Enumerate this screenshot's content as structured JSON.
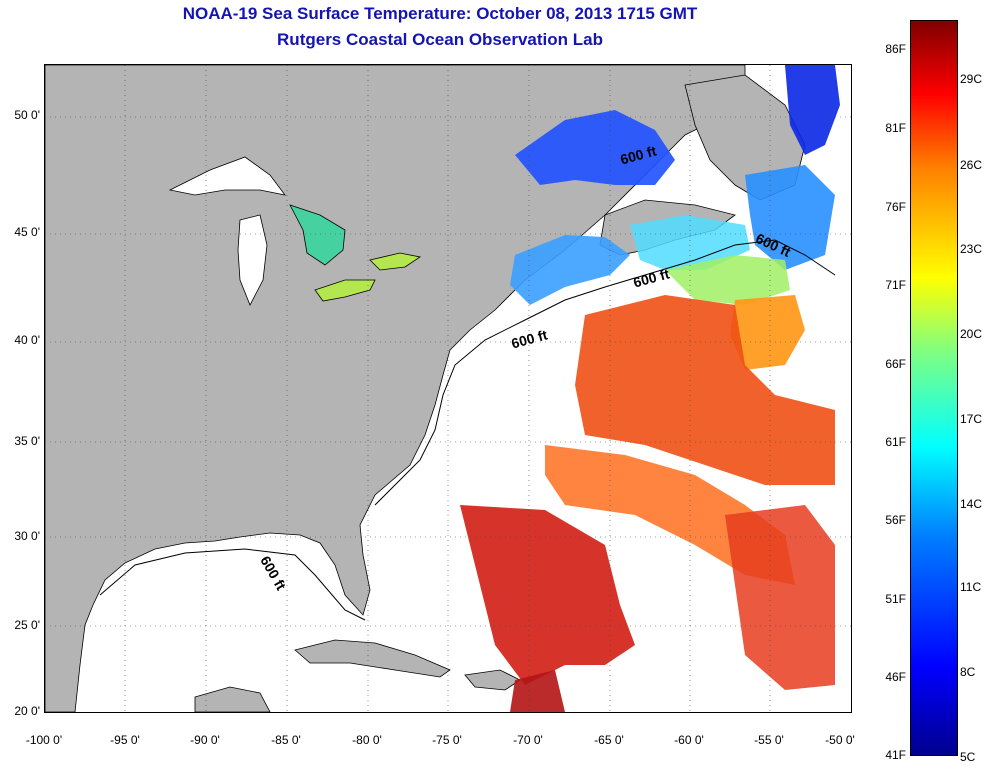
{
  "title": "NOAA-19 Sea Surface Temperature:  October 08, 2013 1715 GMT",
  "subtitle": "Rutgers Coastal Ocean Observation Lab",
  "lat_labels": [
    "50 0'",
    "45 0'",
    "40 0'",
    "35 0'",
    "30 0'",
    "25 0'",
    "20 0'"
  ],
  "lon_labels": [
    "-100 0'",
    "-95 0'",
    "-90 0'",
    "-85 0'",
    "-80 0'",
    "-75 0'",
    "-70 0'",
    "-65 0'",
    "-60 0'",
    "-55 0'",
    "-50 0'"
  ],
  "colorbar": {
    "fahrenheit": [
      "86F",
      "81F",
      "76F",
      "71F",
      "66F",
      "61F",
      "56F",
      "51F",
      "46F",
      "41F"
    ],
    "celsius": [
      "29C",
      "26C",
      "23C",
      "20C",
      "17C",
      "14C",
      "11C",
      "8C",
      "5C"
    ]
  },
  "contour_label": "600 ft",
  "colors": {
    "title": "#1414b4",
    "land": "#b4b4b4",
    "ocean_nodata": "#ffffff"
  }
}
